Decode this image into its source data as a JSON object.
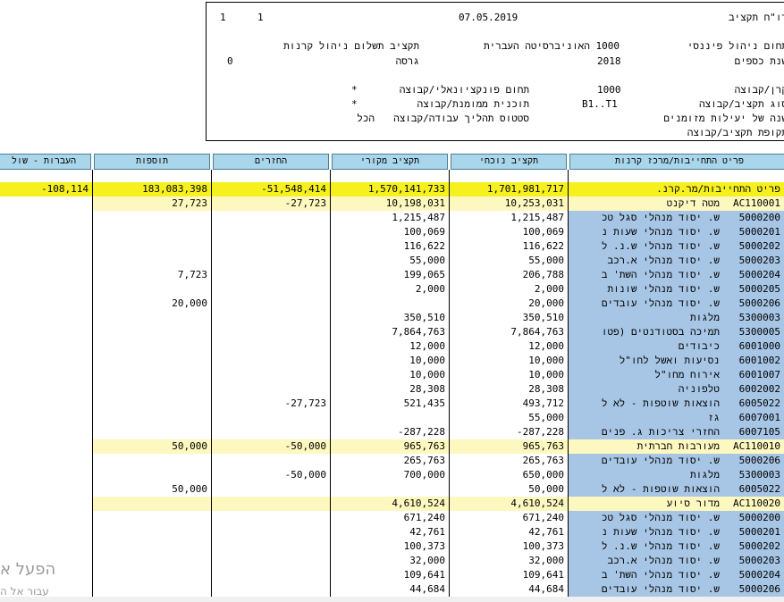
{
  "header": {
    "title": "דו\"ח תקציב",
    "date": "07.05.2019",
    "page_a": "1",
    "page_b": "1",
    "financial_area_label": "תחום ניהול פיננסי",
    "financial_area_value": "1000 האוניברסיטה העברית",
    "budget_payment_label": "תקציב תשלום ניהול קרנות",
    "fiscal_year_label": "שנת כספים",
    "fiscal_year_value": "2018",
    "version_label": "גרסה",
    "version_value": "0",
    "fund_label": "קרן/קבוצה",
    "fund_value": "1000",
    "functional_area_label": "תחום פונקציונאלי/קבוצה",
    "functional_area_value": "*",
    "budget_type_label": "סוג תקציב/קבוצה",
    "budget_type_value": "B1..T1",
    "funded_program_label": "תוכנית ממומנת/קבוצה",
    "funded_program_value": "*",
    "designated_year_label": "שנה של יעילות מזומנים",
    "process_status_label": "סטטוס תהליך עבודה/קבוצה",
    "process_status_value": "הכל",
    "budget_period_label": "תקופת תקציב/קבוצה"
  },
  "columns": {
    "description": "פריט התחייבות/מרכז קרנות",
    "current": "תקציב נוכחי",
    "original": "תקציב מקורי",
    "returns": "החזרים",
    "additions": "תוספות",
    "transfers": "העברות - שול"
  },
  "rows": [
    {
      "kind": "spacer"
    },
    {
      "kind": "total",
      "code": "",
      "name": "פריט התחייבות/מר.קרנ.",
      "current": "1,701,981,717",
      "original": "1,570,141,733",
      "returns": "-51,548,414",
      "additions": "183,083,398",
      "transfers": "-108,114"
    },
    {
      "kind": "group",
      "code": "AC110001",
      "name": "מטה דיקנט",
      "current": "10,253,031",
      "original": "10,198,031",
      "returns": "-27,723",
      "additions": "27,723",
      "transfers": ""
    },
    {
      "kind": "item",
      "code": "5000200",
      "name": "ש. יסוד מנהלי סגל טכ",
      "current": "1,215,487",
      "original": "1,215,487",
      "returns": "",
      "additions": "",
      "transfers": ""
    },
    {
      "kind": "item",
      "code": "5000201",
      "name": "ש. יסוד מנהלי שעות נ",
      "current": "100,069",
      "original": "100,069",
      "returns": "",
      "additions": "",
      "transfers": ""
    },
    {
      "kind": "item",
      "code": "5000202",
      "name": "ש. יסוד מנהלי ש.נ. ל",
      "current": "116,622",
      "original": "116,622",
      "returns": "",
      "additions": "",
      "transfers": ""
    },
    {
      "kind": "item",
      "code": "5000203",
      "name": "ש. יסוד מנהלי א.רכב",
      "current": "55,000",
      "original": "55,000",
      "returns": "",
      "additions": "",
      "transfers": ""
    },
    {
      "kind": "item",
      "code": "5000204",
      "name": "ש. יסוד מנהלי השת' ב",
      "current": "206,788",
      "original": "199,065",
      "returns": "",
      "additions": "7,723",
      "transfers": ""
    },
    {
      "kind": "item",
      "code": "5000205",
      "name": "ש. יסוד מנהלי שונות",
      "current": "2,000",
      "original": "2,000",
      "returns": "",
      "additions": "",
      "transfers": ""
    },
    {
      "kind": "item",
      "code": "5000206",
      "name": "ש. יסוד מנהלי עובדים",
      "current": "20,000",
      "original": "",
      "returns": "",
      "additions": "20,000",
      "transfers": ""
    },
    {
      "kind": "item",
      "code": "5300003",
      "name": "מלגות",
      "current": "350,510",
      "original": "350,510",
      "returns": "",
      "additions": "",
      "transfers": ""
    },
    {
      "kind": "item",
      "code": "5300005",
      "name": "תמיכה בסטודנטים (פטו",
      "current": "7,864,763",
      "original": "7,864,763",
      "returns": "",
      "additions": "",
      "transfers": ""
    },
    {
      "kind": "item",
      "code": "6001000",
      "name": "כיבודים",
      "current": "12,000",
      "original": "12,000",
      "returns": "",
      "additions": "",
      "transfers": ""
    },
    {
      "kind": "item",
      "code": "6001002",
      "name": "נסיעות ואשל לחו\"ל",
      "current": "10,000",
      "original": "10,000",
      "returns": "",
      "additions": "",
      "transfers": ""
    },
    {
      "kind": "item",
      "code": "6001007",
      "name": "אירוח מחו\"ל",
      "current": "10,000",
      "original": "10,000",
      "returns": "",
      "additions": "",
      "transfers": ""
    },
    {
      "kind": "item",
      "code": "6002002",
      "name": "טלפוניה",
      "current": "28,308",
      "original": "28,308",
      "returns": "",
      "additions": "",
      "transfers": ""
    },
    {
      "kind": "item",
      "code": "6005022",
      "name": "הוצאות שוטפות - לא ל",
      "current": "493,712",
      "original": "521,435",
      "returns": "-27,723",
      "additions": "",
      "transfers": ""
    },
    {
      "kind": "item",
      "code": "6007001",
      "name": "גז",
      "current": "55,000",
      "original": "",
      "returns": "",
      "additions": "",
      "transfers": ""
    },
    {
      "kind": "item",
      "code": "6007105",
      "name": "החזרי צריכות ג. פנים",
      "current": "-287,228",
      "original": "-287,228",
      "returns": "",
      "additions": "",
      "transfers": ""
    },
    {
      "kind": "group",
      "code": "AC110010",
      "name": "מעורבות חברתית",
      "current": "965,763",
      "original": "965,763",
      "returns": "-50,000",
      "additions": "50,000",
      "transfers": ""
    },
    {
      "kind": "item",
      "code": "5000206",
      "name": "ש. יסוד מנהלי עובדים",
      "current": "265,763",
      "original": "265,763",
      "returns": "",
      "additions": "",
      "transfers": ""
    },
    {
      "kind": "item",
      "code": "5300003",
      "name": "מלגות",
      "current": "650,000",
      "original": "700,000",
      "returns": "-50,000",
      "additions": "",
      "transfers": ""
    },
    {
      "kind": "item",
      "code": "6005022",
      "name": "הוצאות שוטפות - לא ל",
      "current": "50,000",
      "original": "",
      "returns": "",
      "additions": "50,000",
      "transfers": ""
    },
    {
      "kind": "group",
      "code": "AC110020",
      "name": "מדור סיוע",
      "current": "4,610,524",
      "original": "4,610,524",
      "returns": "",
      "additions": "",
      "transfers": ""
    },
    {
      "kind": "item",
      "code": "5000200",
      "name": "ש. יסוד מנהלי סגל טכ",
      "current": "671,240",
      "original": "671,240",
      "returns": "",
      "additions": "",
      "transfers": ""
    },
    {
      "kind": "item",
      "code": "5000201",
      "name": "ש. יסוד מנהלי שעות נ",
      "current": "42,761",
      "original": "42,761",
      "returns": "",
      "additions": "",
      "transfers": ""
    },
    {
      "kind": "item",
      "code": "5000202",
      "name": "ש. יסוד מנהלי ש.נ. ל",
      "current": "100,373",
      "original": "100,373",
      "returns": "",
      "additions": "",
      "transfers": ""
    },
    {
      "kind": "item",
      "code": "5000203",
      "name": "ש. יסוד מנהלי א.רכב",
      "current": "32,000",
      "original": "32,000",
      "returns": "",
      "additions": "",
      "transfers": ""
    },
    {
      "kind": "item",
      "code": "5000204",
      "name": "ש. יסוד מנהלי השת' ב",
      "current": "109,641",
      "original": "109,641",
      "returns": "",
      "additions": "",
      "transfers": ""
    },
    {
      "kind": "item",
      "code": "5000206",
      "name": "ש. יסוד מנהלי עובדים",
      "current": "44,684",
      "original": "44,684",
      "returns": "",
      "additions": "",
      "transfers": ""
    }
  ],
  "watermark": {
    "line1": "הפעל א",
    "line2": "עבור אל ה"
  }
}
